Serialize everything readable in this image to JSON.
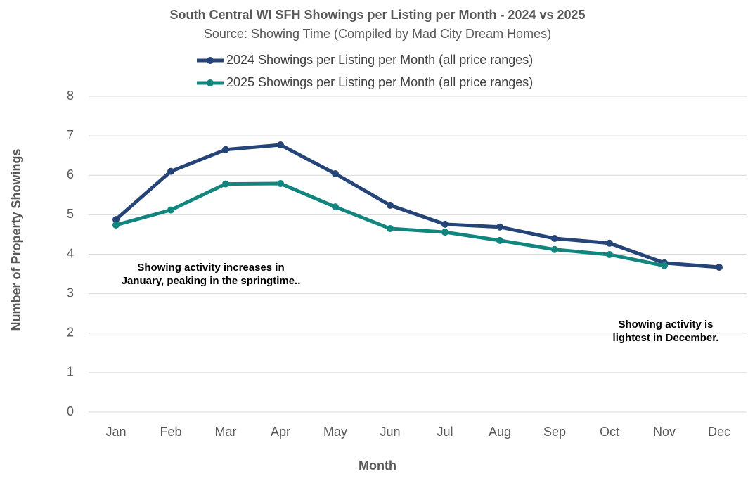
{
  "chart_data": {
    "type": "line",
    "title": "South Central WI SFH Showings per Listing per Month - 2024 vs 2025",
    "subtitle": "Source: Showing Time (Compiled by Mad City Dream Homes)",
    "x_label": "Month",
    "y_label": "Number of Property Showings",
    "categories": [
      "Jan",
      "Feb",
      "Mar",
      "Apr",
      "May",
      "Jun",
      "Jul",
      "Aug",
      "Sep",
      "Oct",
      "Nov",
      "Dec"
    ],
    "series": [
      {
        "name": "2024 Showings per Listing per Month (all price ranges)",
        "color": "#254478",
        "values": [
          4.88,
          6.1,
          6.65,
          6.77,
          6.04,
          5.24,
          4.76,
          4.69,
          4.4,
          4.28,
          3.78,
          3.67
        ]
      },
      {
        "name": "2025 Showings per Listing per Month (all price ranges)",
        "color": "#13857f",
        "values": [
          4.74,
          5.12,
          5.78,
          5.79,
          5.2,
          4.65,
          4.56,
          4.35,
          4.12,
          3.99,
          3.71,
          null
        ]
      }
    ],
    "ylim": [
      0,
      8
    ],
    "yticks": [
      0,
      1,
      2,
      3,
      4,
      5,
      6,
      7,
      8
    ],
    "grid": true,
    "annotations": [
      [
        "Showing activity increases in",
        "January, peaking in the springtime.."
      ],
      [
        "Showing activity is",
        "lightest in December."
      ]
    ]
  }
}
